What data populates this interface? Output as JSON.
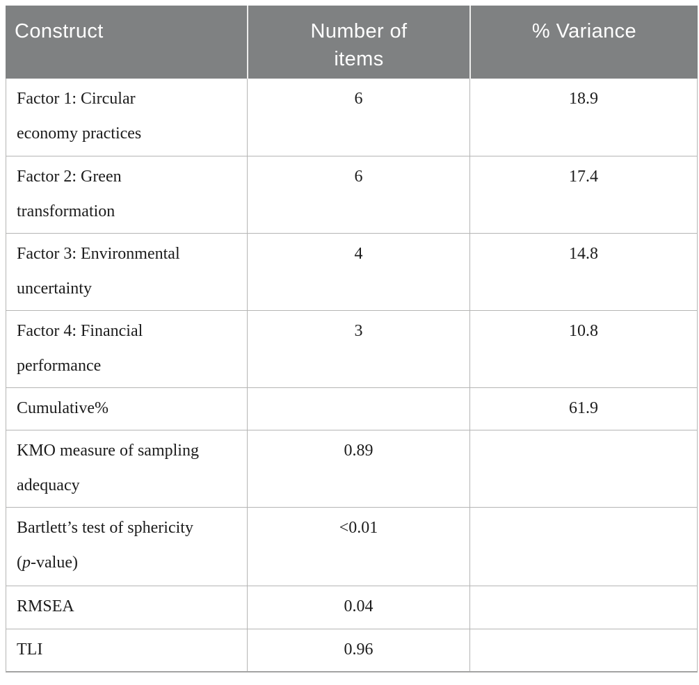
{
  "table": {
    "header": {
      "construct": "Construct",
      "items": "Number of\nitems",
      "variance": "% Variance"
    },
    "rows": [
      {
        "construct": [
          {
            "text": "Factor 1: Circular\neconomy practices"
          }
        ],
        "items": "6",
        "variance": "18.9"
      },
      {
        "construct": [
          {
            "text": "Factor 2: Green\ntransformation"
          }
        ],
        "items": "6",
        "variance": "17.4"
      },
      {
        "construct": [
          {
            "text": "Factor 3: Environmental\nuncertainty"
          }
        ],
        "items": "4",
        "variance": "14.8"
      },
      {
        "construct": [
          {
            "text": "Factor 4: Financial\nperformance"
          }
        ],
        "items": "3",
        "variance": "10.8"
      },
      {
        "construct": [
          {
            "text": "Cumulative%"
          }
        ],
        "items": "",
        "variance": "61.9"
      },
      {
        "construct": [
          {
            "text": "KMO measure of sampling\nadequacy"
          }
        ],
        "items": "0.89",
        "variance": ""
      },
      {
        "construct": [
          {
            "text": "Bartlett’s test of sphericity\n("
          },
          {
            "text": "p",
            "italic": true
          },
          {
            "text": "-value)"
          }
        ],
        "items": "<0.01",
        "variance": ""
      },
      {
        "construct": [
          {
            "text": "RMSEA"
          }
        ],
        "items": "0.04",
        "variance": ""
      },
      {
        "construct": [
          {
            "text": "TLI"
          }
        ],
        "items": "0.96",
        "variance": ""
      }
    ],
    "colors": {
      "header_bg": "#7f8182",
      "header_text": "#ffffff",
      "body_text": "#1c1c1c",
      "border": "#b5b5b4",
      "border_strong": "#a3a3a2"
    }
  }
}
